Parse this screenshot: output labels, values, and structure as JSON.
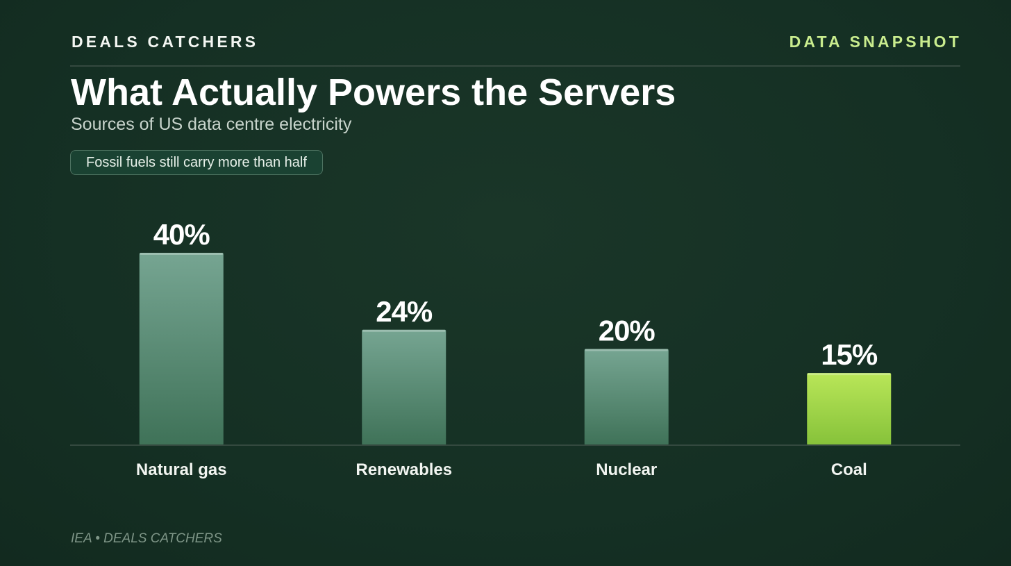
{
  "header": {
    "brand": "DEALS CATCHERS",
    "tag": "DATA SNAPSHOT"
  },
  "title": "What Actually Powers the Servers",
  "subtitle": "Sources of US data centre electricity",
  "callout": "Fossil fuels still carry more than half",
  "footer": {
    "source": "IEA • DEALS CATCHERS"
  },
  "colors": {
    "background": "#153024",
    "bar_default_top": "#76a592",
    "bar_default_bottom": "#3f7258",
    "bar_highlight_top": "#b9e658",
    "bar_highlight_bottom": "#86c23a",
    "brand_accent": "#c9ec8e"
  },
  "chart_data": {
    "type": "bar",
    "categories": [
      "Natural gas",
      "Renewables",
      "Nuclear",
      "Coal"
    ],
    "values": [
      40,
      24,
      20,
      15
    ],
    "value_labels": [
      "40%",
      "24%",
      "20%",
      "15%"
    ],
    "highlight": "Coal",
    "unit": "%",
    "ylim": [
      0,
      40
    ],
    "grid": false,
    "legend": "none"
  }
}
